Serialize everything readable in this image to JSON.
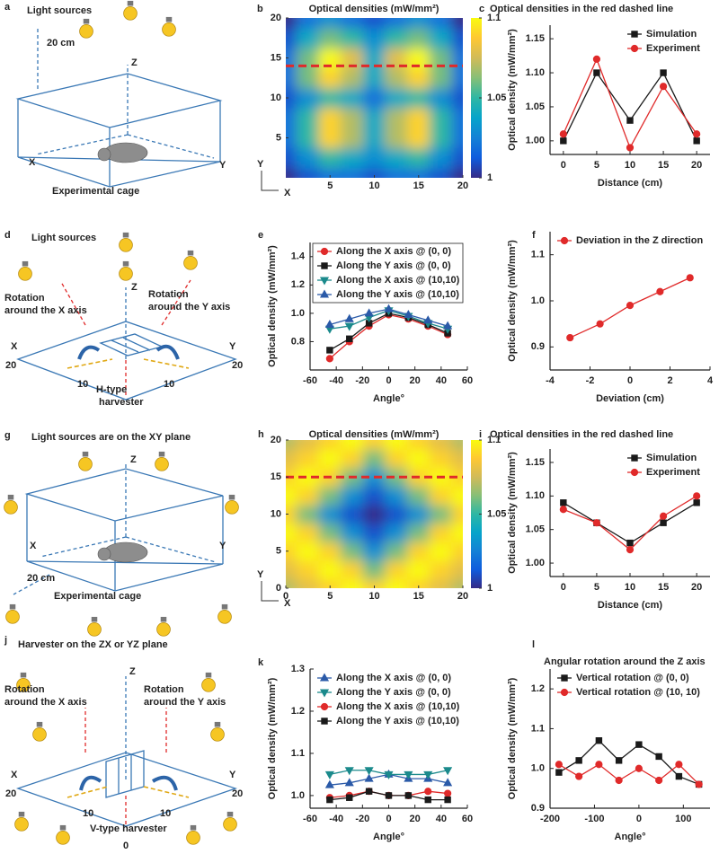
{
  "diagrams": [
    {
      "texts": [
        "a",
        "Light sources",
        "20 cm",
        "Z",
        "X",
        "Y",
        "Experimental cage"
      ]
    },
    {
      "texts": [
        "d",
        "Light sources",
        "Z",
        "Rotation",
        "around the X axis",
        "Rotation",
        "around the Y axis",
        "X",
        "Y",
        "20",
        "20",
        "10",
        "10",
        "H-type",
        "harvester"
      ]
    },
    {
      "texts": [
        "g",
        "Light sources are on the XY plane",
        "Z",
        "X",
        "Y",
        "20 cm",
        "Experimental cage"
      ]
    },
    {
      "texts": [
        "j",
        "Harvester on the ZX or YZ plane",
        "Z",
        "Rotation",
        "around the X axis",
        "Rotation",
        "around the Y axis",
        "X",
        "Y",
        "20",
        "20",
        "10",
        "10",
        "0",
        "V-type harvester"
      ]
    }
  ],
  "chart_data": [
    {
      "type": "heatmap",
      "panel": "b",
      "title": "Optical densities (mW/mm²)",
      "xlabel": "X",
      "ylabel": "Y",
      "x": [
        0,
        2.5,
        5,
        7.5,
        10,
        12.5,
        15,
        17.5,
        20
      ],
      "y": [
        0,
        2.5,
        5,
        7.5,
        10,
        12.5,
        15,
        17.5,
        20
      ],
      "z": [
        [
          1.0,
          1.01,
          1.02,
          1.02,
          1.01,
          1.02,
          1.02,
          1.01,
          1.0
        ],
        [
          1.01,
          1.03,
          1.05,
          1.04,
          1.03,
          1.04,
          1.05,
          1.03,
          1.01
        ],
        [
          1.02,
          1.05,
          1.09,
          1.07,
          1.04,
          1.07,
          1.09,
          1.05,
          1.02
        ],
        [
          1.02,
          1.05,
          1.09,
          1.07,
          1.04,
          1.07,
          1.09,
          1.05,
          1.02
        ],
        [
          1.01,
          1.03,
          1.05,
          1.04,
          1.02,
          1.04,
          1.05,
          1.03,
          1.01
        ],
        [
          1.02,
          1.06,
          1.09,
          1.07,
          1.04,
          1.07,
          1.09,
          1.06,
          1.02
        ],
        [
          1.02,
          1.06,
          1.1,
          1.08,
          1.04,
          1.08,
          1.1,
          1.06,
          1.02
        ],
        [
          1.01,
          1.04,
          1.06,
          1.05,
          1.03,
          1.05,
          1.06,
          1.04,
          1.01
        ],
        [
          1.0,
          1.02,
          1.03,
          1.02,
          1.01,
          1.02,
          1.03,
          1.02,
          1.0
        ]
      ],
      "xlim": [
        0,
        20
      ],
      "ylim": [
        0,
        20
      ],
      "xticks": [
        5,
        10,
        15,
        20
      ],
      "yticks": [
        5,
        10,
        15,
        20
      ],
      "clim": [
        1,
        1.1
      ],
      "cticks": [
        1,
        1.05,
        1.1
      ],
      "colormap": [
        "#352a87",
        "#0f5cdd",
        "#1481d6",
        "#06a4ca",
        "#2eb7a4",
        "#87bf77",
        "#d1bb59",
        "#fec832",
        "#f9fb0e"
      ],
      "hline": {
        "value": 14,
        "color": "#e02a2a"
      }
    },
    {
      "type": "line",
      "panel": "c",
      "title": "Optical densities in the red dashed line",
      "xlabel": "Distance (cm)",
      "ylabel": "Optical density (mW/mm²)",
      "x": [
        0,
        5,
        10,
        15,
        20
      ],
      "xlim": [
        -2,
        22
      ],
      "xticks": [
        0,
        5,
        10,
        15,
        20
      ],
      "ylim": [
        0.98,
        1.17
      ],
      "yticks": [
        {
          "value": 1,
          "label": "1.00"
        },
        1.05,
        {
          "value": 1.1,
          "label": "1.10"
        },
        1.15
      ],
      "legend": "upper right",
      "series": [
        {
          "name": "Simulation",
          "color": "#1a1a1a",
          "marker": "square",
          "values": [
            1.0,
            1.1,
            1.03,
            1.1,
            1.0
          ]
        },
        {
          "name": "Experiment",
          "color": "#e02a2a",
          "marker": "circle",
          "values": [
            1.01,
            1.12,
            0.99,
            1.08,
            1.01
          ]
        }
      ]
    },
    {
      "type": "line",
      "panel": "e",
      "xlabel": "Angle°",
      "ylabel": "Optical density (mW/mm²)",
      "x": [
        -45,
        -30,
        -15,
        0,
        15,
        30,
        45
      ],
      "xlim": [
        -60,
        60
      ],
      "xticks": [
        -60,
        -40,
        -20,
        0,
        20,
        40,
        60
      ],
      "ylim": [
        0.6,
        1.5
      ],
      "yticks": [
        0.8,
        {
          "value": 1,
          "label": "1.0"
        },
        1.2,
        1.4
      ],
      "legend": "upper left",
      "legend_frame": true,
      "series": [
        {
          "name": "Along the X axis @ (0, 0)",
          "color": "#e02a2a",
          "marker": "circle",
          "values": [
            0.68,
            0.8,
            0.91,
            0.99,
            0.96,
            0.91,
            0.85
          ]
        },
        {
          "name": "Along the Y axis @ (0, 0)",
          "color": "#1a1a1a",
          "marker": "square",
          "values": [
            0.74,
            0.82,
            0.93,
            1.0,
            0.97,
            0.92,
            0.86
          ]
        },
        {
          "name": "Along the X axis @ (10,10)",
          "color": "#1b8a8c",
          "marker": "triangle-down",
          "values": [
            0.89,
            0.91,
            0.97,
            1.02,
            0.98,
            0.93,
            0.89
          ]
        },
        {
          "name": "Along the Y axis @ (10,10)",
          "color": "#2b5aa8",
          "marker": "triangle-up",
          "values": [
            0.92,
            0.96,
            1.0,
            1.03,
            0.99,
            0.95,
            0.91
          ]
        }
      ]
    },
    {
      "type": "line",
      "panel": "f",
      "xlabel": "Deviation (cm)",
      "ylabel": "Optical density (mW/mm²)",
      "x": [
        -3,
        -1.5,
        0,
        1.5,
        3
      ],
      "xlim": [
        -4,
        4
      ],
      "xticks": [
        -4,
        -2,
        0,
        2,
        4
      ],
      "ylim": [
        0.85,
        1.15
      ],
      "yticks": [
        0.9,
        {
          "value": 1,
          "label": "1.0"
        },
        1.1
      ],
      "legend": "upper left",
      "series": [
        {
          "name": "Deviation in the Z direction",
          "color": "#e02a2a",
          "marker": "circle",
          "values": [
            0.92,
            0.95,
            0.99,
            1.02,
            1.05
          ]
        }
      ]
    },
    {
      "type": "heatmap",
      "panel": "h",
      "title": "Optical densities (mW/mm²)",
      "xlabel": "X",
      "ylabel": "Y",
      "x": [
        0,
        2.5,
        5,
        7.5,
        10,
        12.5,
        15,
        17.5,
        20
      ],
      "y": [
        0,
        2.5,
        5,
        7.5,
        10,
        12.5,
        15,
        17.5,
        20
      ],
      "z": [
        [
          1.07,
          1.08,
          1.09,
          1.1,
          1.09,
          1.1,
          1.09,
          1.08,
          1.07
        ],
        [
          1.08,
          1.09,
          1.1,
          1.09,
          1.06,
          1.09,
          1.1,
          1.09,
          1.08
        ],
        [
          1.09,
          1.1,
          1.09,
          1.06,
          1.03,
          1.06,
          1.09,
          1.1,
          1.09
        ],
        [
          1.1,
          1.09,
          1.06,
          1.03,
          1.01,
          1.03,
          1.06,
          1.09,
          1.1
        ],
        [
          1.09,
          1.06,
          1.03,
          1.01,
          1.0,
          1.01,
          1.03,
          1.06,
          1.09
        ],
        [
          1.1,
          1.09,
          1.06,
          1.03,
          1.01,
          1.03,
          1.06,
          1.09,
          1.1
        ],
        [
          1.09,
          1.1,
          1.09,
          1.06,
          1.03,
          1.06,
          1.09,
          1.1,
          1.09
        ],
        [
          1.08,
          1.09,
          1.1,
          1.09,
          1.06,
          1.09,
          1.1,
          1.09,
          1.08
        ],
        [
          1.07,
          1.08,
          1.09,
          1.1,
          1.09,
          1.1,
          1.09,
          1.08,
          1.07
        ]
      ],
      "xlim": [
        0,
        20
      ],
      "ylim": [
        0,
        20
      ],
      "xticks": [
        0,
        5,
        10,
        15,
        20
      ],
      "yticks": [
        0,
        5,
        10,
        15,
        20
      ],
      "clim": [
        1,
        1.1
      ],
      "cticks": [
        1,
        1.05,
        1.1
      ],
      "colormap": [
        "#352a87",
        "#0f5cdd",
        "#1481d6",
        "#06a4ca",
        "#2eb7a4",
        "#87bf77",
        "#d1bb59",
        "#fec832",
        "#f9fb0e"
      ],
      "hline": {
        "value": 15,
        "color": "#e02a2a"
      }
    },
    {
      "type": "line",
      "panel": "i",
      "title": "Optical densities in the red dashed line",
      "xlabel": "Distance (cm)",
      "ylabel": "Optical density (mW/mm²)",
      "x": [
        0,
        5,
        10,
        15,
        20
      ],
      "xlim": [
        -2,
        22
      ],
      "xticks": [
        0,
        5,
        10,
        15,
        20
      ],
      "ylim": [
        0.98,
        1.17
      ],
      "yticks": [
        {
          "value": 1,
          "label": "1.00"
        },
        1.05,
        {
          "value": 1.1,
          "label": "1.10"
        },
        1.15
      ],
      "legend": "upper right",
      "series": [
        {
          "name": "Simulation",
          "color": "#1a1a1a",
          "marker": "square",
          "values": [
            1.09,
            1.06,
            1.03,
            1.06,
            1.09
          ]
        },
        {
          "name": "Experiment",
          "color": "#e02a2a",
          "marker": "circle",
          "values": [
            1.08,
            1.06,
            1.02,
            1.07,
            1.1
          ]
        }
      ]
    },
    {
      "type": "line",
      "panel": "k",
      "xlabel": "Angle°",
      "ylabel": "Optical density (mW/mm²)",
      "x": [
        -45,
        -30,
        -15,
        0,
        15,
        30,
        45
      ],
      "xlim": [
        -60,
        60
      ],
      "xticks": [
        -60,
        -40,
        -20,
        0,
        20,
        40,
        60
      ],
      "ylim": [
        0.97,
        1.3
      ],
      "yticks": [
        {
          "value": 1,
          "label": "1.0"
        },
        1.1,
        1.2,
        1.3
      ],
      "legend": "upper left",
      "series": [
        {
          "name": "Along the X axis @ (0, 0)",
          "color": "#2b5aa8",
          "marker": "triangle-up",
          "values": [
            1.025,
            1.03,
            1.04,
            1.05,
            1.04,
            1.04,
            1.03
          ]
        },
        {
          "name": "Along the Y axis @ (0, 0)",
          "color": "#1b8a8c",
          "marker": "triangle-down",
          "values": [
            1.05,
            1.06,
            1.06,
            1.05,
            1.05,
            1.05,
            1.06
          ]
        },
        {
          "name": "Along the X axis @ (10,10)",
          "color": "#e02a2a",
          "marker": "circle",
          "values": [
            0.995,
            1.0,
            1.01,
            1.0,
            1.0,
            1.01,
            1.005
          ]
        },
        {
          "name": "Along the Y axis @ (10,10)",
          "color": "#1a1a1a",
          "marker": "square",
          "values": [
            0.99,
            0.995,
            1.01,
            1.0,
            1.0,
            0.99,
            0.99
          ]
        }
      ]
    },
    {
      "type": "line",
      "panel": "l",
      "title": "Angular rotation around the Z axis",
      "xlabel": "Angle°",
      "ylabel": "Optical density (mW/mm²)",
      "x": [
        -180,
        -135,
        -90,
        -45,
        0,
        45,
        90,
        135
      ],
      "xlim": [
        -200,
        160
      ],
      "xticks": [
        -200,
        -100,
        0,
        100
      ],
      "ylim": [
        0.9,
        1.25
      ],
      "yticks": [
        0.9,
        {
          "value": 1,
          "label": "1.0"
        },
        1.1,
        1.2
      ],
      "legend": "upper left",
      "series": [
        {
          "name": "Vertical rotation @ (0, 0)",
          "color": "#1a1a1a",
          "marker": "square",
          "values": [
            0.99,
            1.02,
            1.07,
            1.02,
            1.06,
            1.03,
            0.98,
            0.96
          ]
        },
        {
          "name": "Vertical rotation @ (10, 10)",
          "color": "#e02a2a",
          "marker": "circle",
          "values": [
            1.01,
            0.98,
            1.01,
            0.97,
            1.0,
            0.97,
            1.01,
            0.96
          ]
        }
      ]
    }
  ]
}
